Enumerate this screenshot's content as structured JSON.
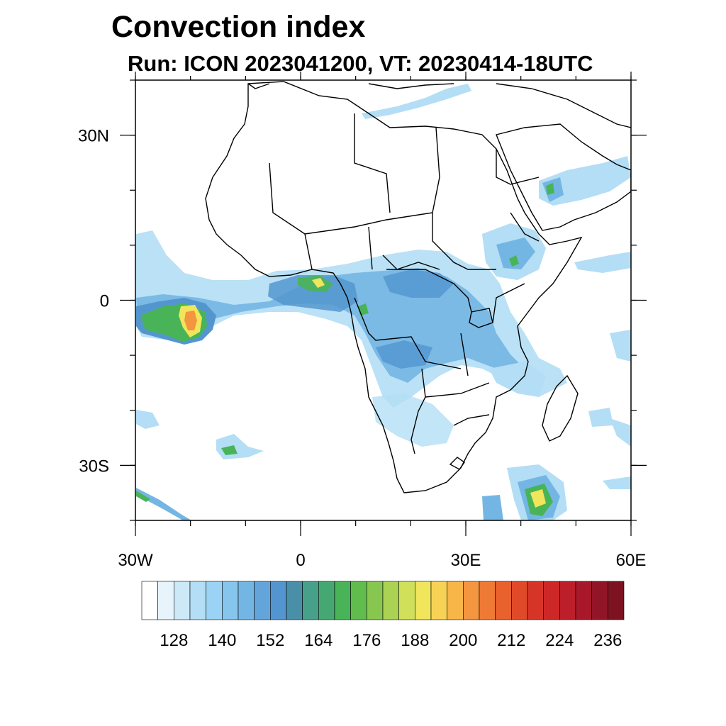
{
  "title": "Convection index",
  "subtitle": "Run: ICON 2023041200,  VT: 20230414-18UTC",
  "map": {
    "region": "Africa and surrounding oceans",
    "lon_range": [
      -30,
      60
    ],
    "lat_range": [
      -40,
      40
    ],
    "x_tick_labels": [
      {
        "lon": -30,
        "label": "30W"
      },
      {
        "lon": 0,
        "label": "0"
      },
      {
        "lon": 30,
        "label": "30E"
      },
      {
        "lon": 60,
        "label": "60E"
      }
    ],
    "y_tick_labels": [
      {
        "lat": 30,
        "label": "30N"
      },
      {
        "lat": 0,
        "label": "0"
      },
      {
        "lat": -30,
        "label": "30S"
      }
    ],
    "minor_tick_step_deg": 10
  },
  "colorbar": {
    "levels": [
      120,
      124,
      128,
      132,
      136,
      140,
      144,
      148,
      152,
      156,
      160,
      164,
      168,
      172,
      176,
      180,
      184,
      188,
      192,
      196,
      200,
      204,
      208,
      212,
      216,
      220,
      224,
      228,
      232,
      236,
      240
    ],
    "tick_labels": [
      "128",
      "140",
      "152",
      "164",
      "176",
      "188",
      "200",
      "212",
      "224",
      "236"
    ],
    "colors": [
      "#ffffff",
      "#e8f4fb",
      "#cde9f7",
      "#b3def5",
      "#9ad3f3",
      "#86c5ec",
      "#74b6e3",
      "#63a5da",
      "#5396cf",
      "#4a8fa8",
      "#47a08a",
      "#45a872",
      "#49b457",
      "#60bc4c",
      "#87c64f",
      "#acd253",
      "#d0e05a",
      "#f1e55c",
      "#f8d254",
      "#f8b548",
      "#f49540",
      "#ef7a35",
      "#e9612d",
      "#e04a29",
      "#d73428",
      "#cd2728",
      "#bc1e2a",
      "#a8182a",
      "#921427",
      "#7d1220"
    ]
  },
  "colors": {
    "coast": "#000000",
    "light_blue": "#b3def5",
    "mid_blue": "#74b6e3",
    "deep_blue": "#5396cf",
    "green": "#49b457",
    "yellow": "#f1e55c",
    "orange": "#f49540"
  }
}
